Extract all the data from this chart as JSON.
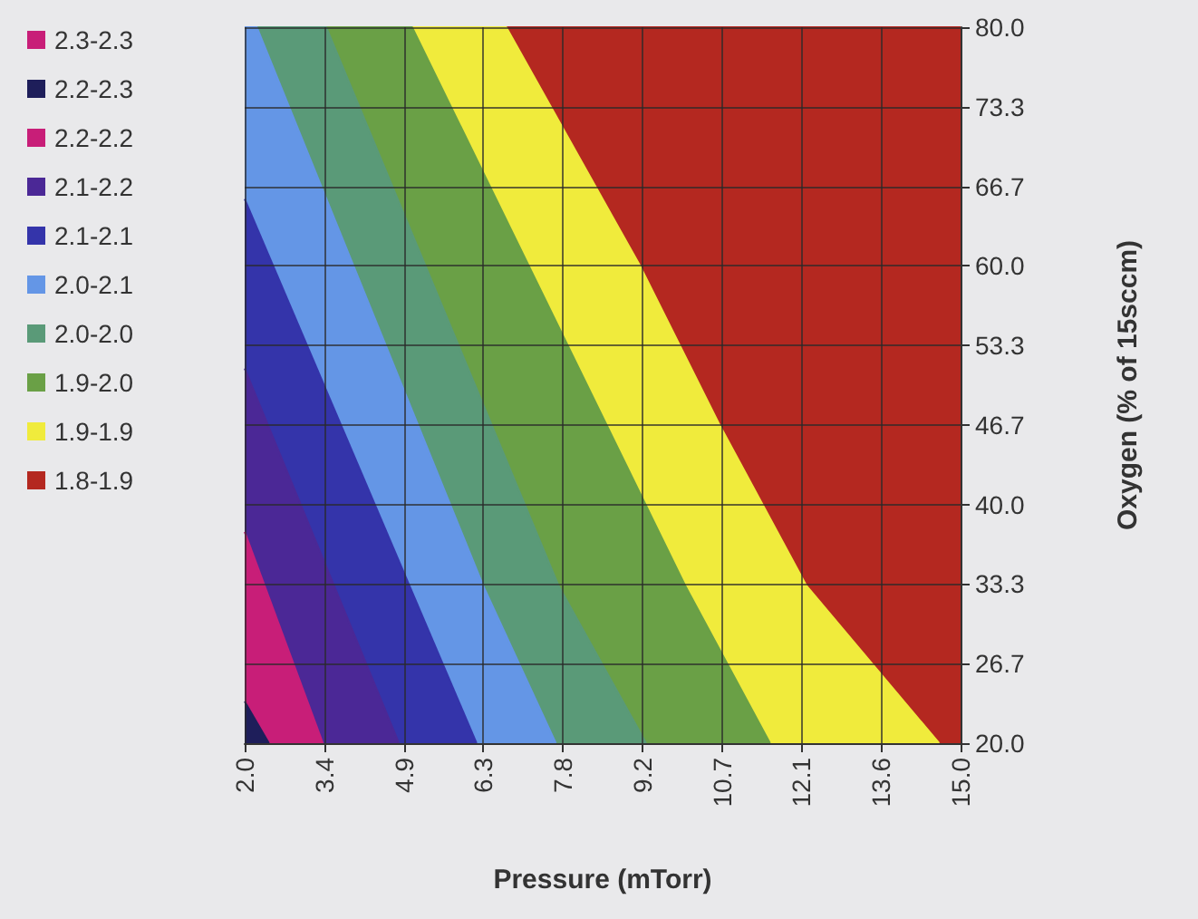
{
  "chart_data": {
    "type": "area",
    "xlabel": "Pressure (mTorr)",
    "ylabel": "Oxygen (% of 15sccm)",
    "legend": "left",
    "grid": true,
    "xlim": [
      2.0,
      15.0
    ],
    "xticks": [
      {
        "value": 2.0,
        "label": "2.0"
      },
      {
        "value": 3.444,
        "label": "3.4"
      },
      {
        "value": 4.889,
        "label": "4.9"
      },
      {
        "value": 6.333,
        "label": "6.3"
      },
      {
        "value": 7.778,
        "label": "7.8"
      },
      {
        "value": 9.222,
        "label": "9.2"
      },
      {
        "value": 10.667,
        "label": "10.7"
      },
      {
        "value": 12.111,
        "label": "12.1"
      },
      {
        "value": 13.556,
        "label": "13.6"
      },
      {
        "value": 15.0,
        "label": "15.0"
      }
    ],
    "ylim": [
      20.0,
      80.0
    ],
    "yticks": [
      {
        "value": 20.0,
        "label": "20.0"
      },
      {
        "value": 26.667,
        "label": "26.7"
      },
      {
        "value": 33.333,
        "label": "33.3"
      },
      {
        "value": 40.0,
        "label": "40.0"
      },
      {
        "value": 46.667,
        "label": "46.7"
      },
      {
        "value": 53.333,
        "label": "53.3"
      },
      {
        "value": 60.0,
        "label": "60.0"
      },
      {
        "value": 66.667,
        "label": "66.7"
      },
      {
        "value": 73.333,
        "label": "73.3"
      },
      {
        "value": 80.0,
        "label": "80.0"
      }
    ],
    "series": [
      {
        "name": "2.3-2.3",
        "color": "#c81e78"
      },
      {
        "name": "2.2-2.3",
        "color": "#1e1e5a",
        "x": [
          2.0,
          2.44
        ],
        "values": [
          23.5,
          20.0
        ]
      },
      {
        "name": "2.2-2.2",
        "color": "#c81e78",
        "x": [
          2.0,
          3.42
        ],
        "values": [
          37.7,
          20.0
        ]
      },
      {
        "name": "2.1-2.2",
        "color": "#4b2896",
        "x": [
          2.0,
          4.8
        ],
        "values": [
          51.4,
          20.0
        ]
      },
      {
        "name": "2.1-2.1",
        "color": "#3434aa",
        "x": [
          2.0,
          6.21
        ],
        "values": [
          65.6,
          20.0
        ]
      },
      {
        "name": "2.0-2.1",
        "color": "#6496e6",
        "x": [
          2.0,
          2.22,
          6.33,
          7.65
        ],
        "values": [
          80.0,
          80.0,
          33.2,
          20.0
        ]
      },
      {
        "name": "2.0-2.0",
        "color": "#5a9a78",
        "x": [
          2.22,
          3.48,
          7.7,
          9.29
        ],
        "values": [
          80.0,
          80.0,
          33.2,
          20.0
        ]
      },
      {
        "name": "1.9-2.0",
        "color": "#6aa046",
        "x": [
          3.48,
          5.04,
          10.0,
          11.54
        ],
        "values": [
          80.0,
          80.0,
          33.2,
          20.0
        ]
      },
      {
        "name": "1.9-1.9",
        "color": "#f0eb3c",
        "x": [
          5.04,
          6.75,
          9.18,
          10.61,
          12.2,
          14.61
        ],
        "values": [
          80.0,
          80.0,
          60.0,
          46.8,
          33.2,
          20.0
        ]
      },
      {
        "name": "1.8-1.9",
        "color": "#b42820",
        "x": [
          6.75,
          15.0
        ],
        "values": [
          80.0,
          80.0
        ]
      }
    ]
  }
}
